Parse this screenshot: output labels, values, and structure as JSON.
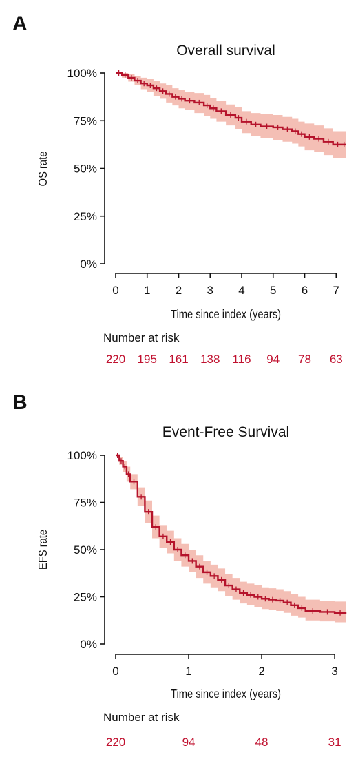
{
  "colors": {
    "curve": "#b5132b",
    "band": "#f2b4a8",
    "axis": "#111111",
    "risk": "#c0112f"
  },
  "panels": [
    {
      "label": "A"
    },
    {
      "label": "B"
    }
  ],
  "chart_data": [
    {
      "type": "line",
      "panel": "A",
      "title": "Overall survival",
      "xlabel": "Time since index (years)",
      "ylabel": "OS rate",
      "xlim": [
        0,
        7.3
      ],
      "ylim": [
        0,
        1
      ],
      "x_ticks": [
        0,
        1,
        2,
        3,
        4,
        5,
        6,
        7
      ],
      "x_tick_labels": [
        "0",
        "1",
        "2",
        "3",
        "4",
        "5",
        "6",
        "7"
      ],
      "y_ticks": [
        0,
        0.25,
        0.5,
        0.75,
        1
      ],
      "y_tick_labels": [
        "0%",
        "25%",
        "50%",
        "75%",
        "100%"
      ],
      "grid": false,
      "series": [
        {
          "x": [
            0,
            0.2,
            0.4,
            0.6,
            0.8,
            1.0,
            1.2,
            1.4,
            1.6,
            1.8,
            2.0,
            2.2,
            2.5,
            2.8,
            3.0,
            3.2,
            3.5,
            3.8,
            4.0,
            4.3,
            4.6,
            5.0,
            5.3,
            5.6,
            5.8,
            6.0,
            6.3,
            6.6,
            6.9,
            7.2,
            7.3
          ],
          "y": [
            1.0,
            0.99,
            0.975,
            0.96,
            0.945,
            0.935,
            0.92,
            0.905,
            0.89,
            0.875,
            0.865,
            0.855,
            0.845,
            0.83,
            0.815,
            0.8,
            0.78,
            0.765,
            0.745,
            0.73,
            0.72,
            0.715,
            0.705,
            0.695,
            0.68,
            0.665,
            0.655,
            0.64,
            0.625,
            0.625,
            0.625
          ],
          "lower": [
            1.0,
            0.975,
            0.955,
            0.935,
            0.915,
            0.9,
            0.88,
            0.865,
            0.845,
            0.83,
            0.815,
            0.805,
            0.79,
            0.775,
            0.76,
            0.745,
            0.725,
            0.705,
            0.685,
            0.67,
            0.66,
            0.65,
            0.64,
            0.63,
            0.615,
            0.595,
            0.585,
            0.57,
            0.555,
            0.555,
            0.555
          ],
          "upper": [
            1.0,
            1.0,
            0.995,
            0.985,
            0.975,
            0.97,
            0.96,
            0.945,
            0.935,
            0.92,
            0.91,
            0.9,
            0.895,
            0.885,
            0.87,
            0.855,
            0.835,
            0.82,
            0.8,
            0.79,
            0.785,
            0.78,
            0.77,
            0.76,
            0.745,
            0.735,
            0.725,
            0.71,
            0.695,
            0.695,
            0.695
          ]
        }
      ],
      "risk_table": {
        "title": "Number at risk",
        "times": [
          0,
          1,
          2,
          3,
          4,
          5,
          6,
          7
        ],
        "counts": [
          "220",
          "195",
          "161",
          "138",
          "116",
          "94",
          "78",
          "63"
        ]
      }
    },
    {
      "type": "line",
      "panel": "B",
      "title": "Event-Free Survival",
      "xlabel": "Time since index (years)",
      "ylabel": "EFS rate",
      "xlim": [
        0,
        3.15
      ],
      "ylim": [
        0,
        1
      ],
      "x_ticks": [
        0,
        1,
        2,
        3
      ],
      "x_tick_labels": [
        "0",
        "1",
        "2",
        "3"
      ],
      "y_ticks": [
        0,
        0.25,
        0.5,
        0.75,
        1
      ],
      "y_tick_labels": [
        "0%",
        "25%",
        "50%",
        "75%",
        "100%"
      ],
      "grid": false,
      "series": [
        {
          "x": [
            0,
            0.05,
            0.1,
            0.15,
            0.2,
            0.3,
            0.4,
            0.5,
            0.6,
            0.7,
            0.8,
            0.9,
            1.0,
            1.1,
            1.2,
            1.3,
            1.4,
            1.5,
            1.6,
            1.7,
            1.8,
            1.9,
            2.0,
            2.1,
            2.2,
            2.3,
            2.4,
            2.5,
            2.6,
            2.8,
            3.0,
            3.15
          ],
          "y": [
            1.0,
            0.97,
            0.94,
            0.9,
            0.86,
            0.78,
            0.7,
            0.62,
            0.57,
            0.54,
            0.5,
            0.47,
            0.44,
            0.41,
            0.38,
            0.36,
            0.34,
            0.31,
            0.29,
            0.27,
            0.26,
            0.25,
            0.24,
            0.235,
            0.23,
            0.22,
            0.205,
            0.19,
            0.175,
            0.17,
            0.165,
            0.16
          ],
          "lower": [
            1.0,
            0.95,
            0.91,
            0.86,
            0.82,
            0.73,
            0.64,
            0.56,
            0.51,
            0.48,
            0.44,
            0.41,
            0.38,
            0.35,
            0.32,
            0.3,
            0.28,
            0.255,
            0.235,
            0.215,
            0.205,
            0.195,
            0.185,
            0.18,
            0.175,
            0.165,
            0.15,
            0.14,
            0.125,
            0.12,
            0.115,
            0.115
          ],
          "upper": [
            1.0,
            0.99,
            0.97,
            0.94,
            0.9,
            0.83,
            0.76,
            0.68,
            0.63,
            0.6,
            0.56,
            0.53,
            0.5,
            0.47,
            0.44,
            0.42,
            0.4,
            0.37,
            0.35,
            0.33,
            0.32,
            0.31,
            0.3,
            0.295,
            0.29,
            0.28,
            0.265,
            0.25,
            0.235,
            0.23,
            0.225,
            0.22
          ]
        }
      ],
      "risk_table": {
        "title": "Number at risk",
        "times": [
          0,
          1,
          2,
          3
        ],
        "counts": [
          "220",
          "94",
          "48",
          "31"
        ]
      }
    }
  ]
}
